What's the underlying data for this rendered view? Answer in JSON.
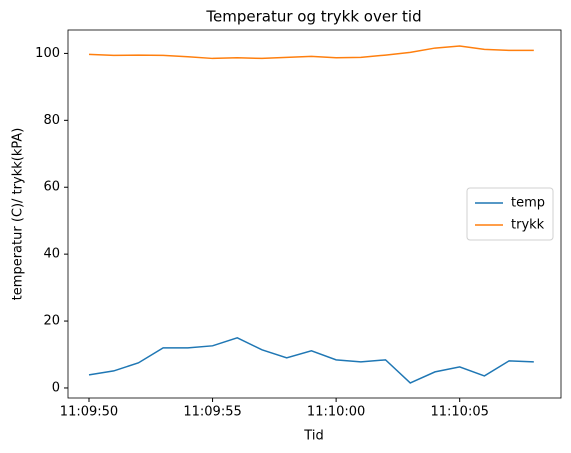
{
  "chart_data": {
    "type": "line",
    "title": "Temperatur og trykk over tid",
    "xlabel": "Tid",
    "ylabel": "temperatur (C)/ trykk(kPA)",
    "x": [
      "11:09:50",
      "11:09:51",
      "11:09:52",
      "11:09:53",
      "11:09:54",
      "11:09:55",
      "11:09:56",
      "11:09:57",
      "11:09:58",
      "11:09:59",
      "11:10:00",
      "11:10:01",
      "11:10:02",
      "11:10:03",
      "11:10:04",
      "11:10:05",
      "11:10:06",
      "11:10:07",
      "11:10:08"
    ],
    "series": [
      {
        "name": "temp",
        "color": "#1f77b4",
        "values": [
          3.9,
          5.1,
          7.5,
          12,
          12,
          12.6,
          15,
          11.4,
          9,
          11.1,
          8.4,
          7.8,
          8.4,
          1.5,
          4.8,
          6.3,
          3.6,
          8.1,
          7.8
        ]
      },
      {
        "name": "trykk",
        "color": "#ff7f0e",
        "values": [
          99.7,
          99.4,
          99.5,
          99.4,
          99,
          98.5,
          98.7,
          98.5,
          98.8,
          99.1,
          98.7,
          98.8,
          99.5,
          100.3,
          101.6,
          102.2,
          101.2,
          100.9,
          100.9
        ]
      }
    ],
    "xlim": [
      "11:09:49.15",
      "11:10:09.1"
    ],
    "xticks": [
      "11:09:50",
      "11:09:55",
      "11:10:00",
      "11:10:05"
    ],
    "ylim": [
      -3,
      107
    ],
    "yticks": [
      0,
      20,
      40,
      60,
      80,
      100
    ],
    "legend": "center right"
  }
}
